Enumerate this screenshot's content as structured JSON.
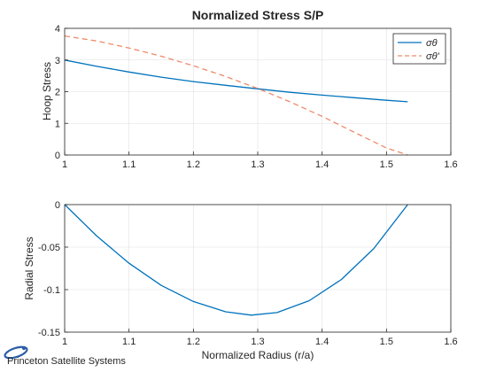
{
  "chart_data": [
    {
      "type": "line",
      "title": "Normalized Stress S/P",
      "xlabel": "",
      "ylabel": "Hoop Stress",
      "xlim": [
        1,
        1.6
      ],
      "ylim": [
        0,
        4
      ],
      "xticks": [
        "1",
        "1.1",
        "1.2",
        "1.3",
        "1.4",
        "1.5",
        "1.6"
      ],
      "yticks": [
        "0",
        "1",
        "2",
        "3",
        "4"
      ],
      "grid": true,
      "legend_position": "top-right",
      "series": [
        {
          "name": "σθ",
          "color": "#0072BD",
          "style": "solid",
          "x": [
            1.0,
            1.05,
            1.1,
            1.15,
            1.2,
            1.25,
            1.3,
            1.35,
            1.4,
            1.45,
            1.5,
            1.533
          ],
          "y": [
            3.0,
            2.8,
            2.62,
            2.46,
            2.32,
            2.2,
            2.09,
            1.98,
            1.89,
            1.81,
            1.73,
            1.68
          ]
        },
        {
          "name": "σθ'",
          "color": "#EE8A6A",
          "style": "dashed",
          "x": [
            1.0,
            1.05,
            1.1,
            1.15,
            1.2,
            1.25,
            1.3,
            1.35,
            1.4,
            1.45,
            1.5,
            1.533
          ],
          "y": [
            3.76,
            3.6,
            3.38,
            3.12,
            2.82,
            2.48,
            2.1,
            1.68,
            1.22,
            0.72,
            0.22,
            0.0
          ]
        }
      ]
    },
    {
      "type": "line",
      "title": "",
      "xlabel": "Normalized Radius (r/a)",
      "ylabel": "Radial Stress",
      "xlim": [
        1,
        1.6
      ],
      "ylim": [
        -0.15,
        0
      ],
      "xticks": [
        "1",
        "1.1",
        "1.2",
        "1.3",
        "1.4",
        "1.5",
        "1.6"
      ],
      "yticks": [
        "0",
        "-0.05",
        "-0.1",
        "-0.15"
      ],
      "grid": true,
      "series": [
        {
          "color": "#0072BD",
          "style": "solid",
          "x": [
            1.0,
            1.05,
            1.1,
            1.15,
            1.2,
            1.25,
            1.29,
            1.33,
            1.38,
            1.43,
            1.48,
            1.533
          ],
          "y": [
            0.0,
            -0.037,
            -0.069,
            -0.095,
            -0.114,
            -0.126,
            -0.13,
            -0.127,
            -0.113,
            -0.088,
            -0.052,
            0.0
          ]
        }
      ]
    }
  ],
  "footer": {
    "logo_text": "Princeton Satellite Systems"
  }
}
